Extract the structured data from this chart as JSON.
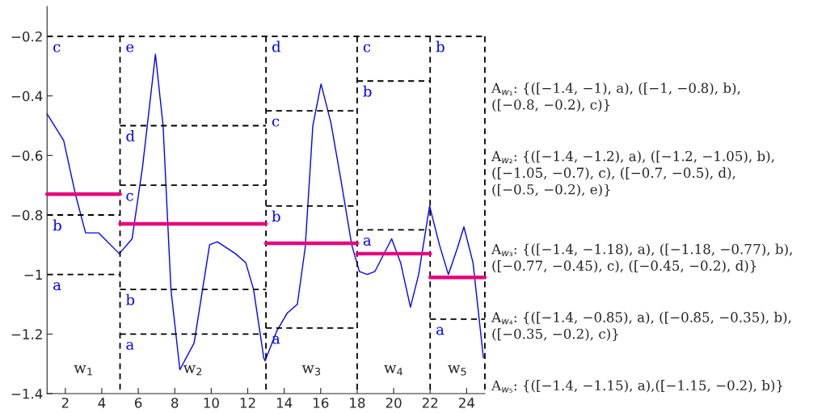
{
  "chart_data": {
    "type": "line",
    "xlim": [
      1,
      25
    ],
    "ylim": [
      -1.4,
      -0.1
    ],
    "xticks": [
      2,
      4,
      6,
      8,
      10,
      12,
      14,
      16,
      18,
      20,
      22,
      24
    ],
    "yticks": [
      {
        "value": -1.4,
        "label": "−1.4"
      },
      {
        "value": -1.2,
        "label": "−1.2"
      },
      {
        "value": -1,
        "label": "−1"
      },
      {
        "value": -0.8,
        "label": "−0.8"
      },
      {
        "value": -0.6,
        "label": "−0.6"
      },
      {
        "value": -0.4,
        "label": "−0.4"
      },
      {
        "value": -0.2,
        "label": "−0.2"
      }
    ],
    "grid": false,
    "series": [
      {
        "color": "#0000ff",
        "x": [
          1.0,
          1.91,
          2.55,
          3.11,
          3.82,
          4.96,
          5.66,
          6.23,
          6.94,
          7.36,
          7.79,
          8.28,
          9.06,
          9.91,
          10.33,
          11.33,
          11.89,
          12.32,
          12.88,
          12.95,
          13.59,
          14.16,
          14.72,
          15.15,
          15.57,
          16.02,
          16.56,
          17.13,
          17.7,
          18.12,
          18.55,
          18.97,
          19.89,
          20.38,
          20.92,
          21.37,
          21.97,
          22.51,
          23.0,
          23.5,
          23.85,
          24.35,
          24.92
        ],
        "values": [
          -0.46,
          -0.55,
          -0.73,
          -0.86,
          -0.86,
          -0.93,
          -0.88,
          -0.64,
          -0.26,
          -0.5,
          -1.05,
          -1.32,
          -1.23,
          -0.9,
          -0.89,
          -0.93,
          -0.96,
          -1.05,
          -1.28,
          -1.29,
          -1.19,
          -1.13,
          -1.1,
          -0.91,
          -0.5,
          -0.36,
          -0.49,
          -0.69,
          -0.9,
          -0.99,
          -1.0,
          -0.99,
          -0.88,
          -0.96,
          -1.11,
          -1.0,
          -0.77,
          -0.9,
          -1.0,
          -0.91,
          -0.84,
          -0.96,
          -1.28
        ]
      },
      {
        "type": "step",
        "color": "#e6007e",
        "x": [
          1,
          5
        ],
        "values": [
          -0.73,
          -0.73
        ]
      },
      {
        "type": "step",
        "color": "#e6007e",
        "x": [
          5,
          13
        ],
        "values": [
          -0.83,
          -0.83
        ]
      },
      {
        "type": "step",
        "color": "#e6007e",
        "x": [
          13,
          18
        ],
        "values": [
          -0.895,
          -0.895
        ]
      },
      {
        "type": "step",
        "color": "#e6007e",
        "x": [
          18,
          22
        ],
        "values": [
          -0.93,
          -0.93
        ]
      },
      {
        "type": "step",
        "color": "#e6007e",
        "x": [
          22,
          25
        ],
        "values": [
          -1.01,
          -1.01
        ]
      },
      {
        "type": "line",
        "color": "#000000",
        "line_style": "dashed",
        "x": [
          1,
          25
        ],
        "values": [
          -0.2,
          -0.2
        ]
      },
      {
        "type": "line",
        "color": "#000000",
        "line_style": "dashed",
        "x": [
          5,
          5
        ],
        "values": [
          -0.2,
          -1.4
        ]
      },
      {
        "type": "line",
        "color": "#000000",
        "line_style": "dashed",
        "x": [
          13,
          13
        ],
        "values": [
          -0.2,
          -1.4
        ]
      },
      {
        "type": "line",
        "color": "#000000",
        "line_style": "dashed",
        "x": [
          18,
          18
        ],
        "values": [
          -0.2,
          -1.4
        ]
      },
      {
        "type": "line",
        "color": "#000000",
        "line_style": "dashed",
        "x": [
          22,
          22
        ],
        "values": [
          -0.2,
          -1.4
        ]
      },
      {
        "type": "line",
        "color": "#000000",
        "line_style": "dashed",
        "x": [
          25,
          25
        ],
        "values": [
          -0.2,
          -1.4
        ]
      },
      {
        "type": "line",
        "color": "#000000",
        "line_style": "dashed",
        "x": [
          1,
          5
        ],
        "values": [
          -0.8,
          -0.8
        ]
      },
      {
        "type": "line",
        "color": "#000000",
        "line_style": "dashed",
        "x": [
          1,
          5
        ],
        "values": [
          -1,
          -1
        ]
      },
      {
        "type": "line",
        "color": "#000000",
        "line_style": "dashed",
        "x": [
          5,
          13
        ],
        "values": [
          -0.5,
          -0.5
        ]
      },
      {
        "type": "line",
        "color": "#000000",
        "line_style": "dashed",
        "x": [
          5,
          13
        ],
        "values": [
          -0.7,
          -0.7
        ]
      },
      {
        "type": "line",
        "color": "#000000",
        "line_style": "dashed",
        "x": [
          5,
          13
        ],
        "values": [
          -1.05,
          -1.05
        ]
      },
      {
        "type": "line",
        "color": "#000000",
        "line_style": "dashed",
        "x": [
          5,
          13
        ],
        "values": [
          -1.2,
          -1.2
        ]
      },
      {
        "type": "line",
        "color": "#000000",
        "line_style": "dashed",
        "x": [
          13,
          18
        ],
        "values": [
          -0.45,
          -0.45
        ]
      },
      {
        "type": "line",
        "color": "#000000",
        "line_style": "dashed",
        "x": [
          13,
          18
        ],
        "values": [
          -0.77,
          -0.77
        ]
      },
      {
        "type": "line",
        "color": "#000000",
        "line_style": "dashed",
        "x": [
          13,
          18
        ],
        "values": [
          -1.18,
          -1.18
        ]
      },
      {
        "type": "line",
        "color": "#000000",
        "line_style": "dashed",
        "x": [
          18,
          22
        ],
        "values": [
          -0.35,
          -0.35
        ]
      },
      {
        "type": "line",
        "color": "#000000",
        "line_style": "dashed",
        "x": [
          18,
          22
        ],
        "values": [
          -0.85,
          -0.85
        ]
      },
      {
        "type": "line",
        "color": "#000000",
        "line_style": "dashed",
        "x": [
          22,
          25
        ],
        "values": [
          -1.15,
          -1.15
        ]
      }
    ],
    "annotations": [
      {
        "text": "c",
        "x": 1,
        "y": -0.2
      },
      {
        "text": "b",
        "x": 1,
        "y": -0.8
      },
      {
        "text": "a",
        "x": 1,
        "y": -1
      },
      {
        "text": "e",
        "x": 5,
        "y": -0.2
      },
      {
        "text": "d",
        "x": 5,
        "y": -0.5
      },
      {
        "text": "c",
        "x": 5,
        "y": -0.7
      },
      {
        "text": "b",
        "x": 5,
        "y": -1.05
      },
      {
        "text": "a",
        "x": 5,
        "y": -1.2
      },
      {
        "text": "d",
        "x": 13,
        "y": -0.2
      },
      {
        "text": "c",
        "x": 13,
        "y": -0.45
      },
      {
        "text": "b",
        "x": 13,
        "y": -0.77
      },
      {
        "text": "a",
        "x": 13,
        "y": -1.18
      },
      {
        "text": "c",
        "x": 18,
        "y": -0.2
      },
      {
        "text": "b",
        "x": 18,
        "y": -0.35
      },
      {
        "text": "a",
        "x": 18,
        "y": -0.85
      },
      {
        "text": "b",
        "x": 22,
        "y": -0.2
      },
      {
        "text": "a",
        "x": 22,
        "y": -1.15
      },
      "w$_{1}$",
      "w$_{2}$",
      "w$_{3}$",
      "w$_{4}$",
      "w$_{5}$",
      "A$_{w₁}$: {([−1.4, −1), a), ([−1, −0.8), b),\n([−0.8, −0.2), c)}",
      "A$_{w₂}$: {([−1.4, −1.2), a), ([−1.2, −1.05), b),\n([−1.05, −0.7), c), ([−0.7, −0.5), d),\n([−0.5, −0.2), e)}",
      "A$_{w₃}$: {([−1.4, −1.18), a), ([−1.18, −0.77), b),\n([−0.77, −0.45), c), ([−0.45, −0.2), d)}",
      "A$_{w₄}$: {([−1.4, −0.85), a), ([−0.85, −0.35), b),\n([−0.35, −0.2), c)}",
      "A$_{w₅}$: {([−1.4, −1.15), a),([−1.15, −0.2), b)}"
    ]
  }
}
